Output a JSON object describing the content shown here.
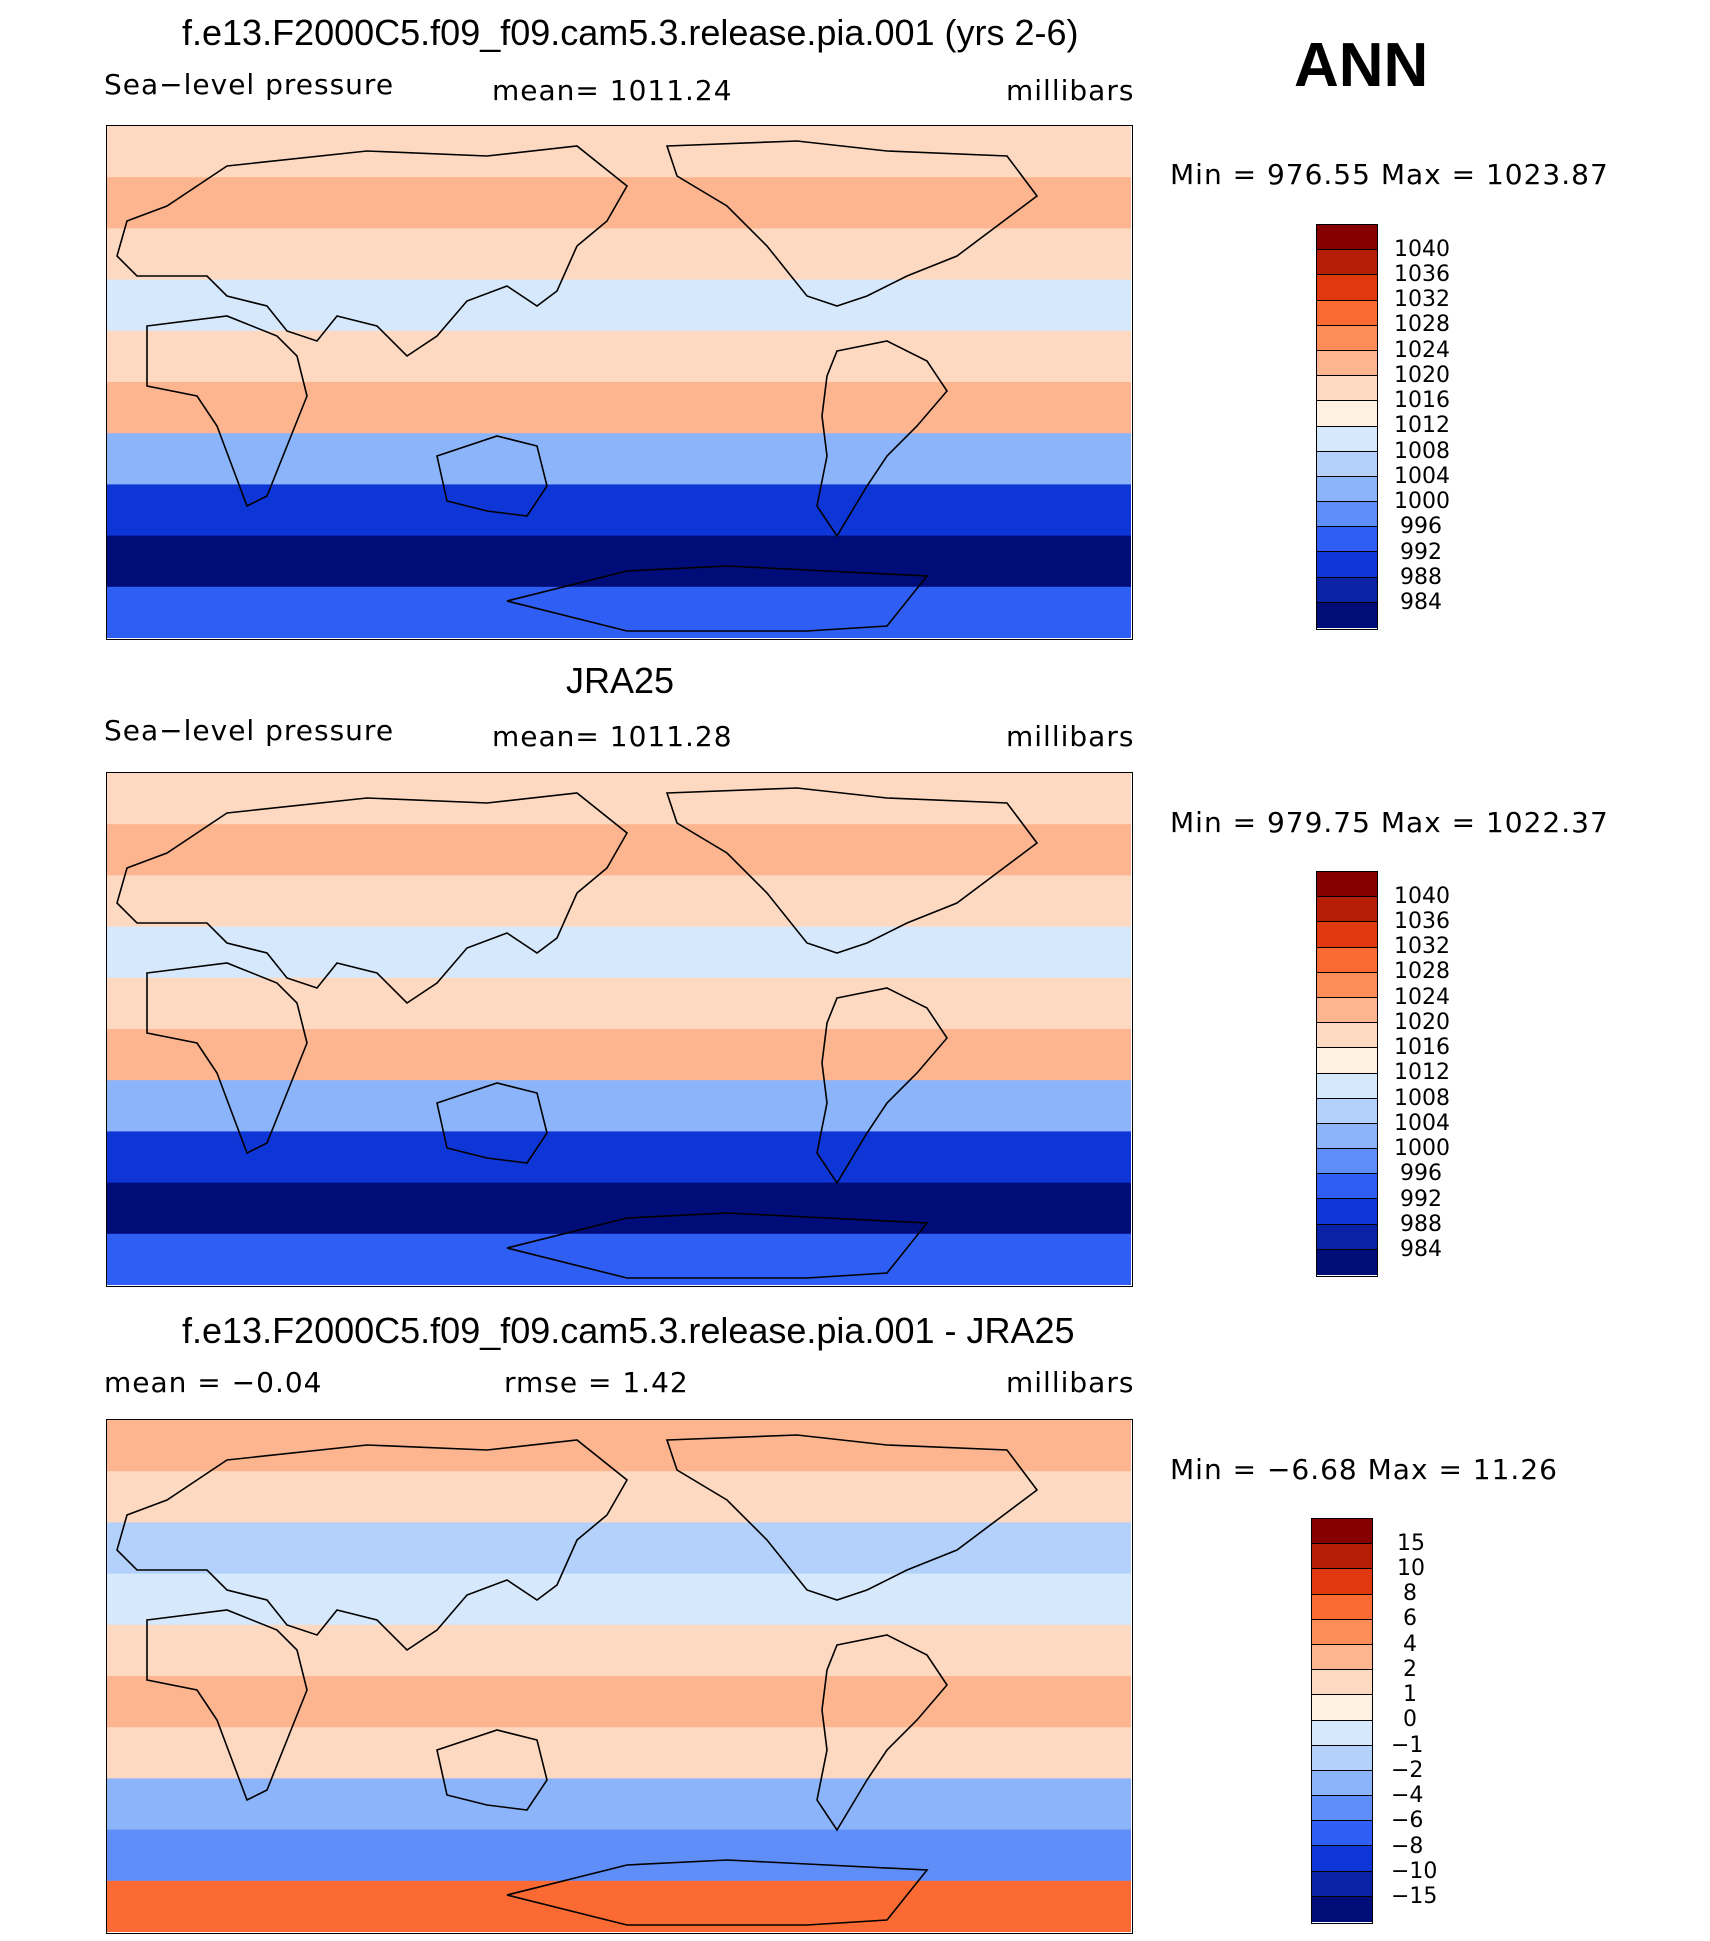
{
  "season": "ANN",
  "chart_data": [
    {
      "type": "heatmap",
      "title": "f.e13.F2000C5.f09_f09.cam5.3.release.pia.001 (yrs 2-6)",
      "variable": "Sea−level pressure",
      "stat_text": "mean=  1011.24",
      "units": "millibars",
      "minmax_text": "Min  =  976.55  Max  =  1023.87",
      "min": 976.55,
      "max": 1023.87,
      "colorbar_ticks": [
        "1040",
        "1036",
        "1032",
        "1028",
        "1024",
        "1020",
        "1016",
        "1012",
        "1008",
        "1004",
        "1000",
        "996",
        "992",
        "988",
        "984"
      ],
      "colorbar_colors": [
        "#850000",
        "#b51d05",
        "#e0390f",
        "#fb6a32",
        "#fc8d59",
        "#fcb58e",
        "#fdd9c1",
        "#fef0e2",
        "#d6e8fb",
        "#b3d1fb",
        "#8cb4fb",
        "#5f8ef9",
        "#2f5ef4",
        "#0e36d6",
        "#0a22a6",
        "#000c78"
      ],
      "zonal_pattern": [
        "#fdd9c1",
        "#fcb58e",
        "#fdd9c1",
        "#d6e8fb",
        "#fdd9c1",
        "#fcb58e",
        "#8cb4fb",
        "#0e36d6",
        "#000c78",
        "#2f5ef4"
      ]
    },
    {
      "type": "heatmap",
      "title": "JRA25",
      "variable": "Sea−level pressure",
      "stat_text": "mean=  1011.28",
      "units": "millibars",
      "minmax_text": "Min  =  979.75  Max  =  1022.37",
      "min": 979.75,
      "max": 1022.37,
      "colorbar_ticks": [
        "1040",
        "1036",
        "1032",
        "1028",
        "1024",
        "1020",
        "1016",
        "1012",
        "1008",
        "1004",
        "1000",
        "996",
        "992",
        "988",
        "984"
      ],
      "colorbar_colors": [
        "#850000",
        "#b51d05",
        "#e0390f",
        "#fb6a32",
        "#fc8d59",
        "#fcb58e",
        "#fdd9c1",
        "#fef0e2",
        "#d6e8fb",
        "#b3d1fb",
        "#8cb4fb",
        "#5f8ef9",
        "#2f5ef4",
        "#0e36d6",
        "#0a22a6",
        "#000c78"
      ],
      "zonal_pattern": [
        "#fdd9c1",
        "#fcb58e",
        "#fdd9c1",
        "#d6e8fb",
        "#fdd9c1",
        "#fcb58e",
        "#8cb4fb",
        "#0e36d6",
        "#000c78",
        "#2f5ef4"
      ]
    },
    {
      "type": "heatmap",
      "title": "f.e13.F2000C5.f09_f09.cam5.3.release.pia.001 - JRA25",
      "stat_left_text": "mean  =    −0.04",
      "stat_mid_text": "rmse  =      1.42",
      "units": "millibars",
      "minmax_text": "Min  =    −6.68  Max  =    11.26",
      "min": -6.68,
      "max": 11.26,
      "colorbar_ticks": [
        "15",
        "10",
        "8",
        "6",
        "4",
        "2",
        "1",
        "0",
        "−1",
        "−2",
        "−4",
        "−6",
        "−8",
        "−10",
        "−15"
      ],
      "colorbar_colors": [
        "#850000",
        "#b51d05",
        "#e0390f",
        "#fb6a32",
        "#fc8d59",
        "#fcb58e",
        "#fdd9c1",
        "#fef0e2",
        "#d6e8fb",
        "#b3d1fb",
        "#8cb4fb",
        "#5f8ef9",
        "#2f5ef4",
        "#0e36d6",
        "#0a22a6",
        "#000c78"
      ],
      "zonal_pattern": [
        "#fcb58e",
        "#fdd9c1",
        "#b3d1fb",
        "#d6e8fb",
        "#fdd9c1",
        "#fcb58e",
        "#fdd9c1",
        "#8cb4fb",
        "#5f8ef9",
        "#fb6a32"
      ]
    }
  ]
}
